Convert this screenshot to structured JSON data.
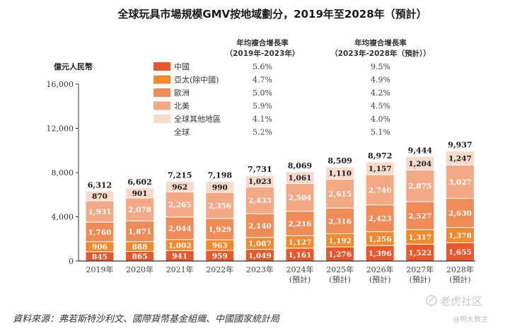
{
  "chart_data": {
    "type": "bar",
    "stacked": true,
    "title": "全球玩具市場規模GMV按地域劃分，2019年至2028年（預計）",
    "ylabel": "億元人民幣",
    "xlabel": "",
    "ylim": [
      0,
      16000
    ],
    "yticks": [
      0,
      4000,
      8000,
      12000,
      16000
    ],
    "ytick_labels": [
      "0",
      "4,000",
      "8,000",
      "12,000",
      "16,000"
    ],
    "grid": false,
    "categories": [
      [
        "2019年"
      ],
      [
        "2020年"
      ],
      [
        "2021年"
      ],
      [
        "2022年"
      ],
      [
        "2023年"
      ],
      [
        "2024年",
        "(預計)"
      ],
      [
        "2025年",
        "(預計)"
      ],
      [
        "2026年",
        "(預計)"
      ],
      [
        "2027年",
        "(預計)"
      ],
      [
        "2028年",
        "(預計)"
      ]
    ],
    "series": [
      {
        "name": "中國",
        "color": "#E8582A",
        "label_color": "#ffffff",
        "values": [
          845,
          865,
          941,
          959,
          1049,
          1161,
          1276,
          1396,
          1522,
          1655
        ],
        "labels": [
          "845",
          "865",
          "941",
          "959",
          "1,049",
          "1,161",
          "1,276",
          "1,396",
          "1,522",
          "1,655"
        ]
      },
      {
        "name": "亞太(除中國)",
        "color": "#F08A2C",
        "label_color": "#ffffff",
        "values": [
          906,
          888,
          1002,
          963,
          1087,
          1127,
          1192,
          1256,
          1317,
          1378
        ],
        "labels": [
          "906",
          "888",
          "1,002",
          "963",
          "1,087",
          "1,127",
          "1,192",
          "1,256",
          "1,317",
          "1,378"
        ]
      },
      {
        "name": "歐洲",
        "color": "#EE8B57",
        "label_color": "#ffffff",
        "values": [
          1760,
          1871,
          2044,
          1929,
          2140,
          2216,
          2316,
          2423,
          2527,
          2630
        ],
        "labels": [
          "1,760",
          "1,871",
          "2,044",
          "1,929",
          "2,140",
          "2,216",
          "2,316",
          "2,423",
          "2,527",
          "2,630"
        ]
      },
      {
        "name": "北美",
        "color": "#F3A886",
        "label_color": "#ffffff",
        "values": [
          1931,
          2078,
          2265,
          2356,
          2433,
          2504,
          2615,
          2740,
          2875,
          3027
        ],
        "labels": [
          "1,931",
          "2,078",
          "2,265",
          "2,356",
          "2,433",
          "2,504",
          "2,615",
          "2,740",
          "2,875",
          "3,027"
        ]
      },
      {
        "name": "全球其他地區",
        "color": "#F9DACA",
        "label_color": "#1a1a1a",
        "values": [
          870,
          901,
          962,
          990,
          1023,
          1061,
          1110,
          1157,
          1204,
          1247
        ],
        "labels": [
          "870",
          "901",
          "962",
          "990",
          "1,023",
          "1,061",
          "1,110",
          "1,157",
          "1,204",
          "1,247"
        ]
      }
    ],
    "totals": [
      6312,
      6602,
      7215,
      7198,
      7731,
      8069,
      8509,
      8972,
      9444,
      9937
    ],
    "total_labels": [
      "6,312",
      "6,602",
      "7,215",
      "7,198",
      "7,731",
      "8,069",
      "8,509",
      "8,972",
      "9,444",
      "9,937"
    ],
    "legend": {
      "placement": "top",
      "cagr_headers": [
        [
          "年均複合增長率",
          "（2019年-2023年）"
        ],
        [
          "年均複合增長率",
          "（2023年-2028年（預計））"
        ]
      ],
      "rows": [
        {
          "name": "中國",
          "color": "#E8582A",
          "cagr1": "5.6%",
          "cagr2": "9.5%"
        },
        {
          "name": "亞太(除中國)",
          "color": "#F08A2C",
          "cagr1": "4.7%",
          "cagr2": "4.9%"
        },
        {
          "name": "歐洲",
          "color": "#EE8B57",
          "cagr1": "5.0%",
          "cagr2": "4.2%"
        },
        {
          "name": "北美",
          "color": "#F3A886",
          "cagr1": "5.9%",
          "cagr2": "4.5%"
        },
        {
          "name": "全球其他地區",
          "color": "#F9DACA",
          "cagr1": "4.1%",
          "cagr2": "4.0%"
        },
        {
          "name": "全球",
          "color": null,
          "cagr1": "5.2%",
          "cagr2": "5.1%"
        }
      ]
    },
    "source": "資料來源：弗若斯特沙利文、國際貨幣基金組織、中國國家統計局"
  },
  "watermark": {
    "brand": "老虎社区",
    "handle": "@明大教主"
  }
}
